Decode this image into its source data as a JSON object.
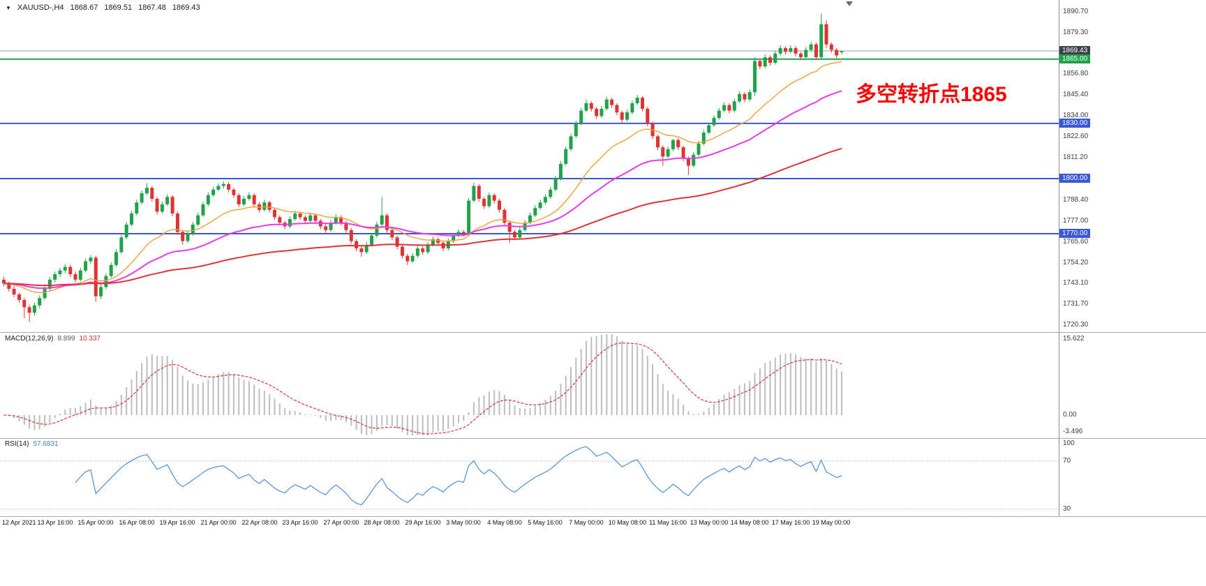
{
  "header": {
    "symbol_info": "XAUUSD-,H4",
    "ohlc": {
      "open": "1868.67",
      "high": "1869.51",
      "low": "1867.48",
      "close": "1869.43"
    }
  },
  "annotation": {
    "text": "多空转折点1865",
    "color": "#ff0000"
  },
  "panels": {
    "macd": {
      "label": "MACD(12,26,9)",
      "main_value": "8.899",
      "signal_value": "10.337",
      "scale_labels": [
        {
          "text": "15.622",
          "value": 15.622
        },
        {
          "text": "0.00",
          "value": 0
        },
        {
          "text": "-3.496",
          "value": -3.496
        }
      ]
    },
    "rsi": {
      "label": "RSI(14)",
      "value": "57.6831",
      "scale_labels": [
        {
          "text": "100",
          "value": 100
        },
        {
          "text": "70",
          "value": 70
        },
        {
          "text": "30",
          "value": 30
        }
      ]
    }
  },
  "chart_data": {
    "type": "candlestick",
    "symbol": "XAUUSD",
    "timeframe": "H4",
    "ylim": [
      1720.3,
      1890.7
    ],
    "colors": {
      "up": "#1fa24a",
      "down": "#e03232",
      "current_price_line": "#9aa0a6",
      "key_level_green": "#1fa24a",
      "support_blue": "#3a57d7"
    },
    "price_axis": {
      "labels": [
        "1890.70",
        "1879.30",
        "1856.80",
        "1845.40",
        "1834.00",
        "1822.60",
        "1811.20",
        "1788.40",
        "1777.00",
        "1765.60",
        "1754.20",
        "1743.10",
        "1731.70",
        "1720.30"
      ],
      "tags": [
        {
          "text": "1869.43",
          "bg": "#39424e"
        },
        {
          "text": "1865.00",
          "bg": "#1fa24a"
        },
        {
          "text": "1830.00",
          "bg": "#3a57d7"
        },
        {
          "text": "1800.00",
          "bg": "#3a57d7"
        },
        {
          "text": "1770.00",
          "bg": "#3a57d7"
        }
      ]
    },
    "hlines": [
      {
        "value": 1869.43,
        "color": "#9aa0a6",
        "width": 1,
        "role": "current-price-line"
      },
      {
        "value": 1865.0,
        "color": "#1fa24a",
        "width": 2,
        "role": "key-level-1865-line"
      },
      {
        "value": 1830.0,
        "color": "#3a57d7",
        "width": 2,
        "role": "support-1830-line"
      },
      {
        "value": 1800.0,
        "color": "#3a57d7",
        "width": 2,
        "role": "support-1800-line"
      },
      {
        "value": 1770.0,
        "color": "#3a57d7",
        "width": 2,
        "role": "support-1770-line"
      }
    ],
    "moving_averages": [
      {
        "period": 20,
        "color": "#efa133",
        "width": 1.4,
        "name": "ma-fast-orange"
      },
      {
        "period": 45,
        "color": "#e83ae8",
        "width": 2,
        "name": "ma-mid-magenta"
      },
      {
        "period": 120,
        "color": "#e03232",
        "width": 2,
        "name": "ma-slow-red"
      }
    ],
    "macd": {
      "fast": 12,
      "slow": 26,
      "signal": 9,
      "histogram_color": "#bdbdbd",
      "signal_color": "#d93434"
    },
    "rsi": {
      "period": 14,
      "color": "#4b8fdc",
      "levels": [
        70,
        30
      ]
    },
    "x_axis": {
      "labels": [
        "12 Apr 2021",
        "13 Apr 16:00",
        "15 Apr 00:00",
        "16 Apr 08:00",
        "19 Apr 16:00",
        "21 Apr 00:00",
        "22 Apr 08:00",
        "23 Apr 16:00",
        "27 Apr 00:00",
        "28 Apr 08:00",
        "29 Apr 16:00",
        "3 May 00:00",
        "4 May 08:00",
        "5 May 16:00",
        "7 May 00:00",
        "10 May 08:00",
        "11 May 16:00",
        "13 May 00:00",
        "14 May 08:00",
        "17 May 16:00",
        "19 May 00:00"
      ],
      "start_index": 2,
      "step": 8
    },
    "candles": [
      [
        1745,
        1746.5,
        1741.5,
        1743
      ],
      [
        1743,
        1744,
        1738.5,
        1740
      ],
      [
        1740,
        1741.5,
        1735.5,
        1737
      ],
      [
        1737,
        1738,
        1732.5,
        1734
      ],
      [
        1734,
        1735,
        1724,
        1730
      ],
      [
        1730,
        1731.5,
        1722,
        1727
      ],
      [
        1727,
        1732.5,
        1725.5,
        1731
      ],
      [
        1731,
        1736.5,
        1729.5,
        1735
      ],
      [
        1735,
        1741.5,
        1734,
        1740
      ],
      [
        1740,
        1746.5,
        1739,
        1745
      ],
      [
        1745,
        1749.5,
        1743.5,
        1748
      ],
      [
        1748,
        1751.5,
        1746.5,
        1750
      ],
      [
        1750,
        1753.5,
        1748.5,
        1752
      ],
      [
        1752,
        1753,
        1746.5,
        1748
      ],
      [
        1748,
        1749.5,
        1743.5,
        1745
      ],
      [
        1745,
        1751.5,
        1744,
        1750
      ],
      [
        1750,
        1756.5,
        1749,
        1755
      ],
      [
        1755,
        1758.5,
        1753.5,
        1757
      ],
      [
        1757,
        1758,
        1733,
        1736
      ],
      [
        1736,
        1742.5,
        1734.5,
        1741
      ],
      [
        1741,
        1748.5,
        1740,
        1747
      ],
      [
        1747,
        1754.5,
        1746,
        1753
      ],
      [
        1753,
        1761.5,
        1752,
        1760
      ],
      [
        1760,
        1769.5,
        1759,
        1768
      ],
      [
        1768,
        1776.5,
        1767,
        1775
      ],
      [
        1775,
        1782.5,
        1774,
        1781
      ],
      [
        1781,
        1788.5,
        1780,
        1787
      ],
      [
        1787,
        1793.5,
        1786,
        1792
      ],
      [
        1792,
        1797.5,
        1791,
        1795
      ],
      [
        1795,
        1796,
        1787.5,
        1789
      ],
      [
        1789,
        1790,
        1780.5,
        1782
      ],
      [
        1782,
        1787.5,
        1781,
        1786
      ],
      [
        1786,
        1791.5,
        1785,
        1790
      ],
      [
        1790,
        1791,
        1779.5,
        1781
      ],
      [
        1781,
        1782,
        1769.5,
        1771
      ],
      [
        1771,
        1772,
        1764,
        1766
      ],
      [
        1766,
        1771.5,
        1765,
        1770
      ],
      [
        1770,
        1776.5,
        1769,
        1775
      ],
      [
        1775,
        1781.5,
        1774,
        1780
      ],
      [
        1780,
        1787.5,
        1779,
        1786
      ],
      [
        1786,
        1792.5,
        1785,
        1791
      ],
      [
        1791,
        1795.5,
        1790,
        1794
      ],
      [
        1794,
        1797.5,
        1793,
        1796
      ],
      [
        1796,
        1798.5,
        1794.5,
        1797
      ],
      [
        1797,
        1798,
        1792.5,
        1794
      ],
      [
        1794,
        1795,
        1789.5,
        1791
      ],
      [
        1791,
        1792,
        1784.5,
        1786
      ],
      [
        1786,
        1790.5,
        1785,
        1789
      ],
      [
        1789,
        1792.5,
        1788,
        1791
      ],
      [
        1791,
        1792,
        1784.5,
        1786
      ],
      [
        1786,
        1787,
        1781.5,
        1783
      ],
      [
        1783,
        1788.5,
        1782,
        1787
      ],
      [
        1787,
        1788,
        1781.5,
        1783
      ],
      [
        1783,
        1784,
        1777.5,
        1779
      ],
      [
        1779,
        1780,
        1774.5,
        1776
      ],
      [
        1776,
        1777,
        1772.5,
        1774
      ],
      [
        1774,
        1779.5,
        1773,
        1778
      ],
      [
        1778,
        1782.5,
        1777,
        1781
      ],
      [
        1781,
        1782,
        1777.5,
        1779
      ],
      [
        1779,
        1780,
        1775.5,
        1777
      ],
      [
        1777,
        1781.5,
        1776,
        1780
      ],
      [
        1780,
        1781,
        1775.5,
        1777
      ],
      [
        1777,
        1778,
        1772.5,
        1774
      ],
      [
        1774,
        1775,
        1770.5,
        1772
      ],
      [
        1772,
        1777.5,
        1771,
        1776
      ],
      [
        1776,
        1780.5,
        1775,
        1779
      ],
      [
        1779,
        1780,
        1774.5,
        1776
      ],
      [
        1776,
        1777,
        1770.5,
        1772
      ],
      [
        1772,
        1773,
        1764.5,
        1766
      ],
      [
        1766,
        1767,
        1760.5,
        1762
      ],
      [
        1762,
        1763,
        1757.5,
        1760
      ],
      [
        1760,
        1765.5,
        1759,
        1764
      ],
      [
        1764,
        1770.5,
        1763,
        1769
      ],
      [
        1769,
        1776.5,
        1768,
        1775
      ],
      [
        1775,
        1790,
        1774,
        1780
      ],
      [
        1780,
        1781,
        1770.5,
        1772
      ],
      [
        1772,
        1773,
        1766.5,
        1768
      ],
      [
        1768,
        1769,
        1761.5,
        1763
      ],
      [
        1763,
        1764,
        1756.5,
        1758
      ],
      [
        1758,
        1759,
        1753,
        1755
      ],
      [
        1755,
        1759.5,
        1754,
        1758
      ],
      [
        1758,
        1763.5,
        1757,
        1762
      ],
      [
        1762,
        1763,
        1758.5,
        1760
      ],
      [
        1760,
        1765.5,
        1759,
        1764
      ],
      [
        1764,
        1768.5,
        1763,
        1767
      ],
      [
        1767,
        1768,
        1763.5,
        1765
      ],
      [
        1765,
        1766,
        1760.5,
        1762
      ],
      [
        1762,
        1767.5,
        1761,
        1766
      ],
      [
        1766,
        1770.5,
        1765,
        1769
      ],
      [
        1769,
        1772.5,
        1768,
        1771
      ],
      [
        1771,
        1772,
        1768.5,
        1770
      ],
      [
        1770,
        1789.5,
        1769,
        1788
      ],
      [
        1788,
        1797.7,
        1787,
        1796
      ],
      [
        1796,
        1797,
        1787.5,
        1789
      ],
      [
        1789,
        1790,
        1783.5,
        1785
      ],
      [
        1785,
        1792.5,
        1784,
        1791
      ],
      [
        1791,
        1792,
        1786.5,
        1788
      ],
      [
        1788,
        1789,
        1781.5,
        1783
      ],
      [
        1783,
        1784,
        1774.5,
        1776
      ],
      [
        1776,
        1777,
        1765,
        1771
      ],
      [
        1771,
        1772,
        1766.5,
        1768
      ],
      [
        1768,
        1773.5,
        1767,
        1772
      ],
      [
        1772,
        1777.5,
        1771,
        1776
      ],
      [
        1776,
        1781.5,
        1775,
        1780
      ],
      [
        1780,
        1785.5,
        1779,
        1784
      ],
      [
        1784,
        1788.5,
        1783,
        1787
      ],
      [
        1787,
        1791.5,
        1786,
        1790
      ],
      [
        1790,
        1795.5,
        1789,
        1794
      ],
      [
        1794,
        1801.5,
        1793,
        1800
      ],
      [
        1800,
        1809.5,
        1799,
        1808
      ],
      [
        1808,
        1817.5,
        1807,
        1816
      ],
      [
        1816,
        1824.5,
        1815,
        1823
      ],
      [
        1823,
        1831.5,
        1822,
        1830
      ],
      [
        1830,
        1838.5,
        1829,
        1837
      ],
      [
        1837,
        1843,
        1836,
        1841
      ],
      [
        1841,
        1842,
        1836.5,
        1838
      ],
      [
        1838,
        1839,
        1832.5,
        1834
      ],
      [
        1834,
        1839.5,
        1833,
        1838
      ],
      [
        1838,
        1844.5,
        1837,
        1843
      ],
      [
        1843,
        1844,
        1838.5,
        1840
      ],
      [
        1840,
        1841,
        1834.5,
        1836
      ],
      [
        1836,
        1837,
        1830.5,
        1832
      ],
      [
        1832,
        1837.5,
        1831,
        1836
      ],
      [
        1836,
        1842.5,
        1835,
        1841
      ],
      [
        1841,
        1845.5,
        1840,
        1844
      ],
      [
        1844,
        1845,
        1836.5,
        1838
      ],
      [
        1838,
        1839,
        1828.5,
        1830
      ],
      [
        1830,
        1831,
        1821.5,
        1823
      ],
      [
        1823,
        1824,
        1815.5,
        1817
      ],
      [
        1817,
        1818,
        1807,
        1812
      ],
      [
        1812,
        1817.5,
        1811,
        1816
      ],
      [
        1816,
        1821.5,
        1815,
        1821
      ],
      [
        1821,
        1822,
        1815.5,
        1817
      ],
      [
        1817,
        1818,
        1809.5,
        1811
      ],
      [
        1811,
        1812,
        1802,
        1807
      ],
      [
        1807,
        1814.5,
        1806,
        1813
      ],
      [
        1813,
        1820.5,
        1812,
        1819
      ],
      [
        1819,
        1826.5,
        1818,
        1825
      ],
      [
        1825,
        1830.5,
        1824,
        1829
      ],
      [
        1829,
        1834.5,
        1828,
        1833
      ],
      [
        1833,
        1838.5,
        1832,
        1837
      ],
      [
        1837,
        1841.5,
        1836,
        1840
      ],
      [
        1840,
        1841,
        1835.5,
        1837
      ],
      [
        1837,
        1843.5,
        1836,
        1842
      ],
      [
        1842,
        1847.5,
        1841,
        1846
      ],
      [
        1846,
        1847,
        1841.5,
        1843
      ],
      [
        1843,
        1848.5,
        1842,
        1847
      ],
      [
        1847,
        1866,
        1845,
        1864
      ],
      [
        1864,
        1865,
        1859.5,
        1861
      ],
      [
        1861,
        1867.5,
        1860,
        1866
      ],
      [
        1866,
        1867,
        1861.5,
        1863
      ],
      [
        1863,
        1869.5,
        1862,
        1868
      ],
      [
        1868,
        1872.5,
        1867,
        1871
      ],
      [
        1871,
        1872,
        1867.5,
        1869
      ],
      [
        1869,
        1872.5,
        1868,
        1871
      ],
      [
        1871,
        1872,
        1866.5,
        1868
      ],
      [
        1868,
        1869,
        1864.5,
        1866
      ],
      [
        1866,
        1871.5,
        1865,
        1870
      ],
      [
        1870,
        1874.5,
        1869,
        1873
      ],
      [
        1873,
        1874,
        1864.5,
        1866
      ],
      [
        1866,
        1889.7,
        1865,
        1884
      ],
      [
        1884,
        1886,
        1871,
        1873
      ],
      [
        1873,
        1874,
        1868.5,
        1870
      ],
      [
        1870,
        1871,
        1865.5,
        1867
      ],
      [
        1868.7,
        1869.5,
        1867.5,
        1869.4
      ]
    ]
  }
}
